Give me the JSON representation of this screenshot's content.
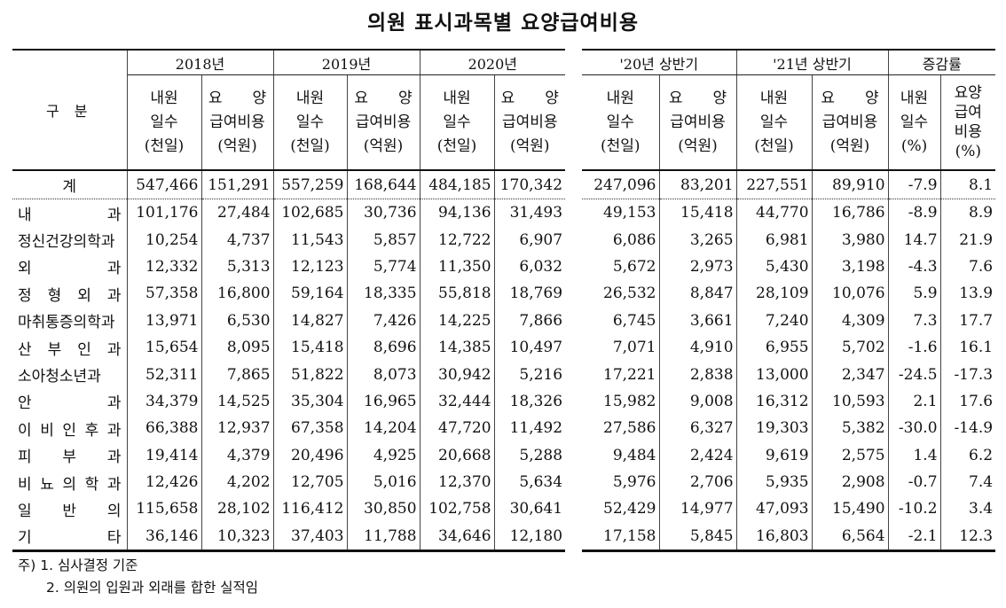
{
  "title": "의원 표시과목별 요양급여비용",
  "left_header": {
    "row_label": "구 분",
    "years": [
      "2018년",
      "2019년",
      "2020년"
    ],
    "sub": [
      "내원\n일수\n(천일)",
      "요　　양\n급여비용\n(억원)"
    ]
  },
  "right_header": {
    "groups": [
      "'20년 상반기",
      "'21년 상반기",
      "증감률"
    ],
    "sub": [
      "내원\n일수\n(천일)",
      "요　　양\n급여비용\n(억원)",
      "내원\n일수\n(%)",
      "요양\n급여\n비용\n(%)"
    ]
  },
  "rows": [
    {
      "label": "계",
      "left": [
        "547,466",
        "151,291",
        "557,259",
        "168,644",
        "484,185",
        "170,342"
      ],
      "right": [
        "247,096",
        "83,201",
        "227,551",
        "89,910",
        "-7.9",
        "8.1"
      ]
    },
    {
      "label": "내 과",
      "left": [
        "101,176",
        "27,484",
        "102,685",
        "30,736",
        "94,136",
        "31,493"
      ],
      "right": [
        "49,153",
        "15,418",
        "44,770",
        "16,786",
        "-8.9",
        "8.9"
      ]
    },
    {
      "label": "정신건강의학과",
      "left": [
        "10,254",
        "4,737",
        "11,543",
        "5,857",
        "12,722",
        "6,907"
      ],
      "right": [
        "6,086",
        "3,265",
        "6,981",
        "3,980",
        "14.7",
        "21.9"
      ]
    },
    {
      "label": "외 과",
      "left": [
        "12,332",
        "5,313",
        "12,123",
        "5,774",
        "11,350",
        "6,032"
      ],
      "right": [
        "5,672",
        "2,973",
        "5,430",
        "3,198",
        "-4.3",
        "7.6"
      ]
    },
    {
      "label": "정 형 외 과",
      "left": [
        "57,358",
        "16,800",
        "59,164",
        "18,335",
        "55,818",
        "18,769"
      ],
      "right": [
        "26,532",
        "8,847",
        "28,109",
        "10,076",
        "5.9",
        "13.9"
      ]
    },
    {
      "label": "마취통증의학과",
      "left": [
        "13,971",
        "6,530",
        "14,827",
        "7,426",
        "14,225",
        "7,866"
      ],
      "right": [
        "6,745",
        "3,661",
        "7,240",
        "4,309",
        "7.3",
        "17.7"
      ]
    },
    {
      "label": "산 부 인 과",
      "left": [
        "15,654",
        "8,095",
        "15,418",
        "8,696",
        "14,385",
        "10,497"
      ],
      "right": [
        "7,071",
        "4,910",
        "6,955",
        "5,702",
        "-1.6",
        "16.1"
      ]
    },
    {
      "label": "소아청소년과",
      "left": [
        "52,311",
        "7,865",
        "51,822",
        "8,073",
        "30,942",
        "5,216"
      ],
      "right": [
        "17,221",
        "2,838",
        "13,000",
        "2,347",
        "-24.5",
        "-17.3"
      ]
    },
    {
      "label": "안 과",
      "left": [
        "34,379",
        "14,525",
        "35,304",
        "16,965",
        "32,444",
        "18,326"
      ],
      "right": [
        "15,982",
        "9,008",
        "16,312",
        "10,593",
        "2.1",
        "17.6"
      ]
    },
    {
      "label": "이 비 인 후 과",
      "left": [
        "66,388",
        "12,937",
        "67,358",
        "14,204",
        "47,720",
        "11,492"
      ],
      "right": [
        "27,586",
        "6,327",
        "19,303",
        "5,382",
        "-30.0",
        "-14.9"
      ]
    },
    {
      "label": "피 부 과",
      "left": [
        "19,414",
        "4,379",
        "20,496",
        "4,925",
        "20,668",
        "5,288"
      ],
      "right": [
        "9,484",
        "2,424",
        "9,619",
        "2,575",
        "1.4",
        "6.2"
      ]
    },
    {
      "label": "비 뇨 의 학 과",
      "left": [
        "12,426",
        "4,202",
        "12,705",
        "5,016",
        "12,370",
        "5,634"
      ],
      "right": [
        "5,976",
        "2,706",
        "5,935",
        "2,908",
        "-0.7",
        "7.4"
      ]
    },
    {
      "label": "일 반 의",
      "left": [
        "115,658",
        "28,102",
        "116,412",
        "30,850",
        "102,758",
        "30,641"
      ],
      "right": [
        "52,429",
        "14,977",
        "47,093",
        "15,490",
        "-10.2",
        "3.4"
      ]
    },
    {
      "label": "기 타",
      "left": [
        "36,146",
        "10,323",
        "37,403",
        "11,788",
        "34,646",
        "12,180"
      ],
      "right": [
        "17,158",
        "5,845",
        "16,803",
        "6,564",
        "-2.1",
        "12.3"
      ]
    }
  ],
  "notes": [
    "주) 1. 심사결정 기준",
    "2. 의원의 입원과 외래를 합한 실적임"
  ]
}
